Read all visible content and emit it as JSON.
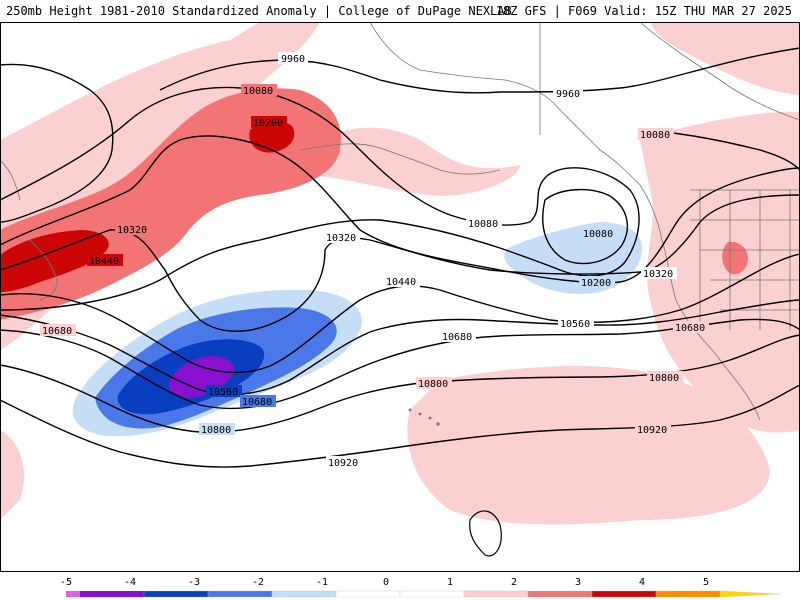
{
  "header": {
    "title_left": "250mb Height 1981-2010 Standardized Anomaly | College of DuPage NEXLAB",
    "title_right": "18Z GFS | F069 Valid: 15Z THU MAR 27 2025"
  },
  "contour_labels": {
    "h9960": "9960",
    "h10080": "10080",
    "h10200": "10200",
    "h10320": "10320",
    "h10440": "10440",
    "h10560": "10560",
    "h10680": "10680",
    "h10800": "10800",
    "h10920": "10920"
  },
  "colorbar": {
    "ticks": [
      "-5",
      "-4",
      "-3",
      "-2",
      "-1",
      "0",
      "1",
      "2",
      "3",
      "4",
      "5"
    ],
    "colors": {
      "lt_-4": "#e060e0",
      "m4_m3": "#8a10d0",
      "m3_m2": "#0a3ec0",
      "m2_m1": "#4a78e8",
      "m1_0": "#c6ddf6",
      "0_1": "#ffffff",
      "1_2": "#fbd0d0",
      "2_3": "#f27474",
      "3_4": "#cc0606",
      "4_5": "#ff8c00",
      "gt_5": "#ffd700"
    }
  }
}
